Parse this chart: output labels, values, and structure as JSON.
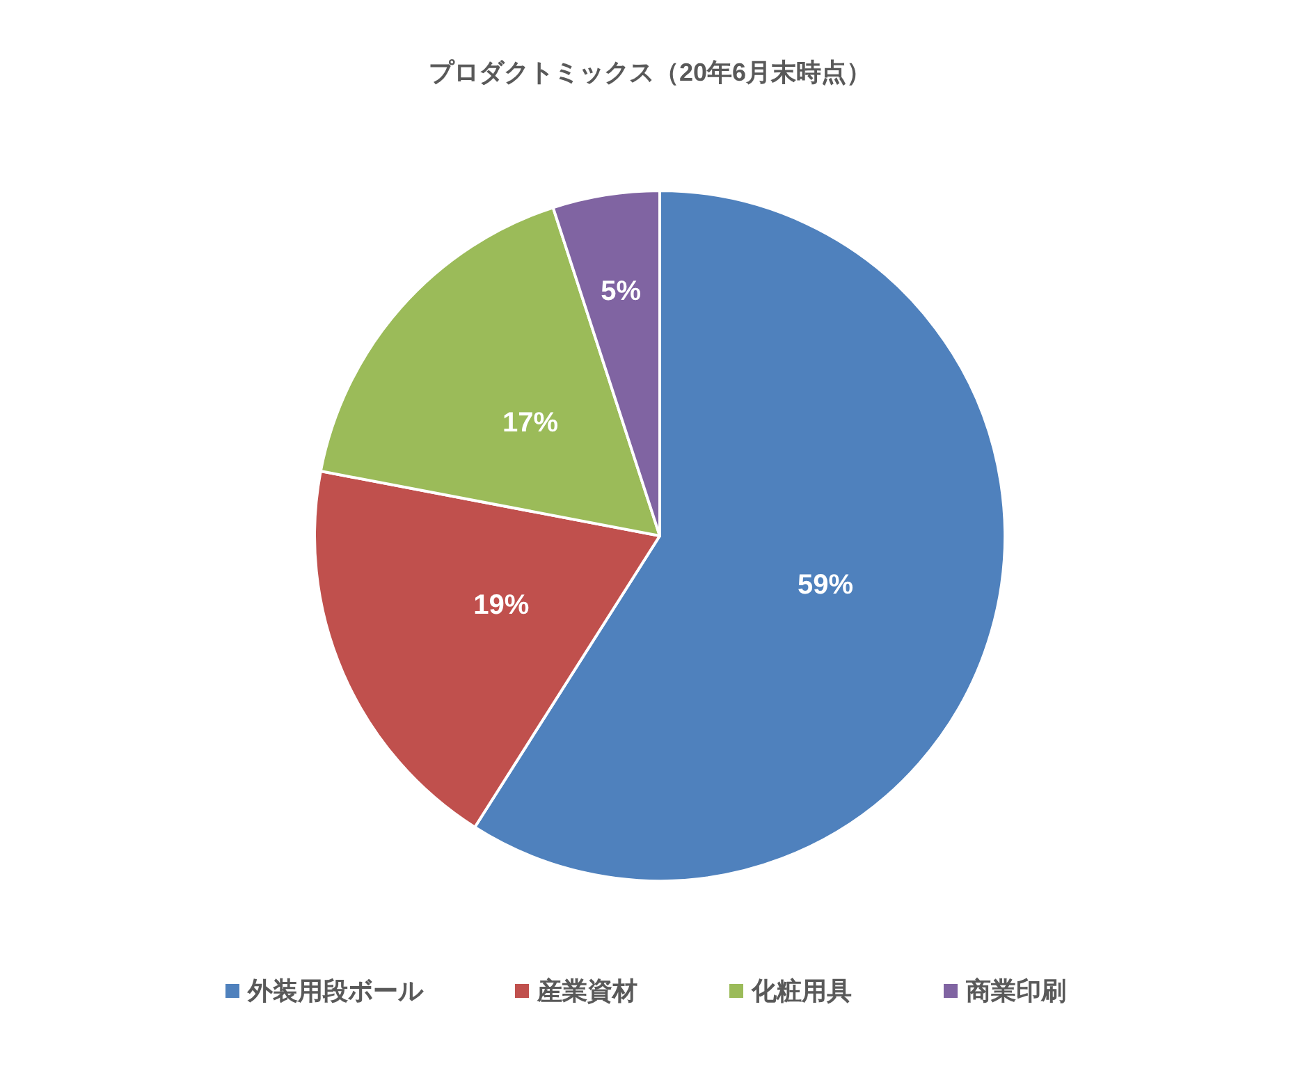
{
  "chart_data": {
    "type": "pie",
    "title": "プロダクトミックス（20年6月末時点）",
    "categories": [
      "外装用段ボール",
      "産業資材",
      "化粧用具",
      "商業印刷"
    ],
    "values": [
      59,
      19,
      17,
      5
    ],
    "colors": [
      "#4f81bd",
      "#c0504d",
      "#9bbb59",
      "#8064a2"
    ],
    "value_labels": [
      "59%",
      "19%",
      "17%",
      "5%"
    ],
    "legend": "bottom"
  }
}
